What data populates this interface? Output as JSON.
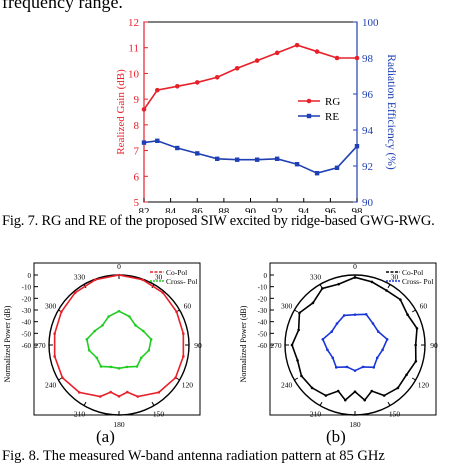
{
  "page": {
    "top_text": "frequency range.",
    "fig7_caption": "Fig. 7. RG and RE of the proposed SIW excited by ridge-based GWG-RWG.",
    "fig8_caption": "Fig. 8. The measured W-band antenna radiation pattern at 85 GHz",
    "sub_a": "(a)",
    "sub_b": "(b)"
  },
  "chart_data": [
    {
      "type": "line",
      "title": "",
      "xlabel": "Frequency (GHz)",
      "ylabel": "Realized Gain (dB)",
      "y2label": "Radiation Efficiency (%)",
      "xlim": [
        82,
        98
      ],
      "ylim": [
        5,
        12
      ],
      "y2lim": [
        90,
        100
      ],
      "xticks": [
        "82",
        "84",
        "86",
        "88",
        "90",
        "92",
        "94",
        "96",
        "98"
      ],
      "yticks": [
        "5",
        "6",
        "7",
        "8",
        "9",
        "10",
        "11",
        "12"
      ],
      "y2ticks": [
        "90",
        "92",
        "94",
        "96",
        "98",
        "100"
      ],
      "legend_position": "right-middle",
      "colors": {
        "rg": "#e8202a",
        "re": "#1f3fb4",
        "right_axis": "#1f3fb4",
        "left_axis": "#e8202a"
      },
      "series": [
        {
          "name": "RG",
          "axis": "left",
          "marker": "circle",
          "x": [
            82,
            83,
            84.5,
            86,
            87.5,
            89,
            90.5,
            92,
            93.5,
            95,
            96.5,
            98
          ],
          "y": [
            8.6,
            9.35,
            9.5,
            9.65,
            9.85,
            10.2,
            10.5,
            10.8,
            11.1,
            10.85,
            10.6,
            10.6
          ]
        },
        {
          "name": "RE",
          "axis": "right",
          "marker": "square",
          "x": [
            82,
            83,
            84.5,
            86,
            87.5,
            89,
            90.5,
            92,
            93.5,
            95,
            96.5,
            98
          ],
          "y": [
            93.3,
            93.4,
            93.0,
            92.7,
            92.4,
            92.35,
            92.35,
            92.4,
            92.1,
            91.6,
            91.9,
            93.1
          ]
        }
      ]
    },
    {
      "type": "polar",
      "panel": "(a)",
      "ylabel": "Normalized Power (dB)",
      "angle_ticks": [
        "0",
        "30",
        "60",
        "90",
        "120",
        "150",
        "180",
        "210",
        "240",
        "270",
        "300",
        "330"
      ],
      "radial_ticks": [
        "0",
        "-10",
        "-20",
        "-30",
        "-40",
        "-50",
        "-60"
      ],
      "rlim": [
        -60,
        0
      ],
      "legend_position": "top-right",
      "colors": {
        "co": "#e8202a",
        "cross": "#22cc22"
      },
      "series": [
        {
          "name": "Co-Pol",
          "angles_deg": [
            0,
            20,
            40,
            60,
            80,
            100,
            120,
            140,
            160,
            170,
            180,
            190,
            200,
            220,
            240,
            260,
            280,
            300,
            320,
            340
          ],
          "values": [
            0,
            -0.5,
            -1.5,
            -3,
            -4,
            -4,
            -4,
            -7,
            -13,
            -19,
            -16,
            -19,
            -13,
            -7,
            -4,
            -4,
            -4,
            -3,
            -1.5,
            -0.5
          ]
        },
        {
          "name": "Cross- Pol",
          "angles_deg": [
            0,
            20,
            40,
            60,
            80,
            100,
            120,
            140,
            160,
            180,
            200,
            220,
            240,
            260,
            280,
            300,
            320,
            340
          ],
          "values": [
            -31,
            -34,
            -38,
            -36,
            -32,
            -34,
            -38,
            -36,
            -40,
            -40,
            -40,
            -36,
            -38,
            -34,
            -32,
            -36,
            -38,
            -34
          ]
        }
      ]
    },
    {
      "type": "polar",
      "panel": "(b)",
      "ylabel": "Normalized Power (dB)",
      "angle_ticks": [
        "0",
        "30",
        "60",
        "90",
        "120",
        "150",
        "180",
        "210",
        "240",
        "270",
        "300",
        "330"
      ],
      "radial_ticks": [
        "0",
        "-10",
        "-20",
        "-30",
        "-40",
        "-50",
        "-60"
      ],
      "rlim": [
        -60,
        0
      ],
      "legend_position": "top-right",
      "colors": {
        "co": "#000000",
        "cross": "#1a35d8"
      },
      "series": [
        {
          "name": "Co-Pol",
          "angles_deg": [
            0,
            15,
            30,
            45,
            60,
            75,
            90,
            105,
            120,
            135,
            150,
            160,
            170,
            180,
            190,
            200,
            210,
            225,
            240,
            255,
            270,
            285,
            300,
            315,
            330,
            345
          ],
          "values": [
            -2,
            -4,
            -6,
            -5,
            -8,
            -5,
            -8,
            -6,
            -9,
            -8,
            -10,
            -18,
            -12,
            -20,
            -12,
            -18,
            -10,
            -8,
            -7,
            -9,
            -6,
            -10,
            -5,
            -9,
            -4,
            -6
          ]
        },
        {
          "name": "Cross- Pol",
          "angles_deg": [
            0,
            20,
            40,
            60,
            80,
            100,
            120,
            140,
            160,
            180,
            200,
            220,
            240,
            260,
            280,
            300,
            320,
            340
          ],
          "values": [
            -34,
            -32,
            -36,
            -37,
            -32,
            -36,
            -38,
            -35,
            -40,
            -38,
            -40,
            -35,
            -38,
            -36,
            -32,
            -37,
            -36,
            -33
          ]
        }
      ]
    }
  ]
}
